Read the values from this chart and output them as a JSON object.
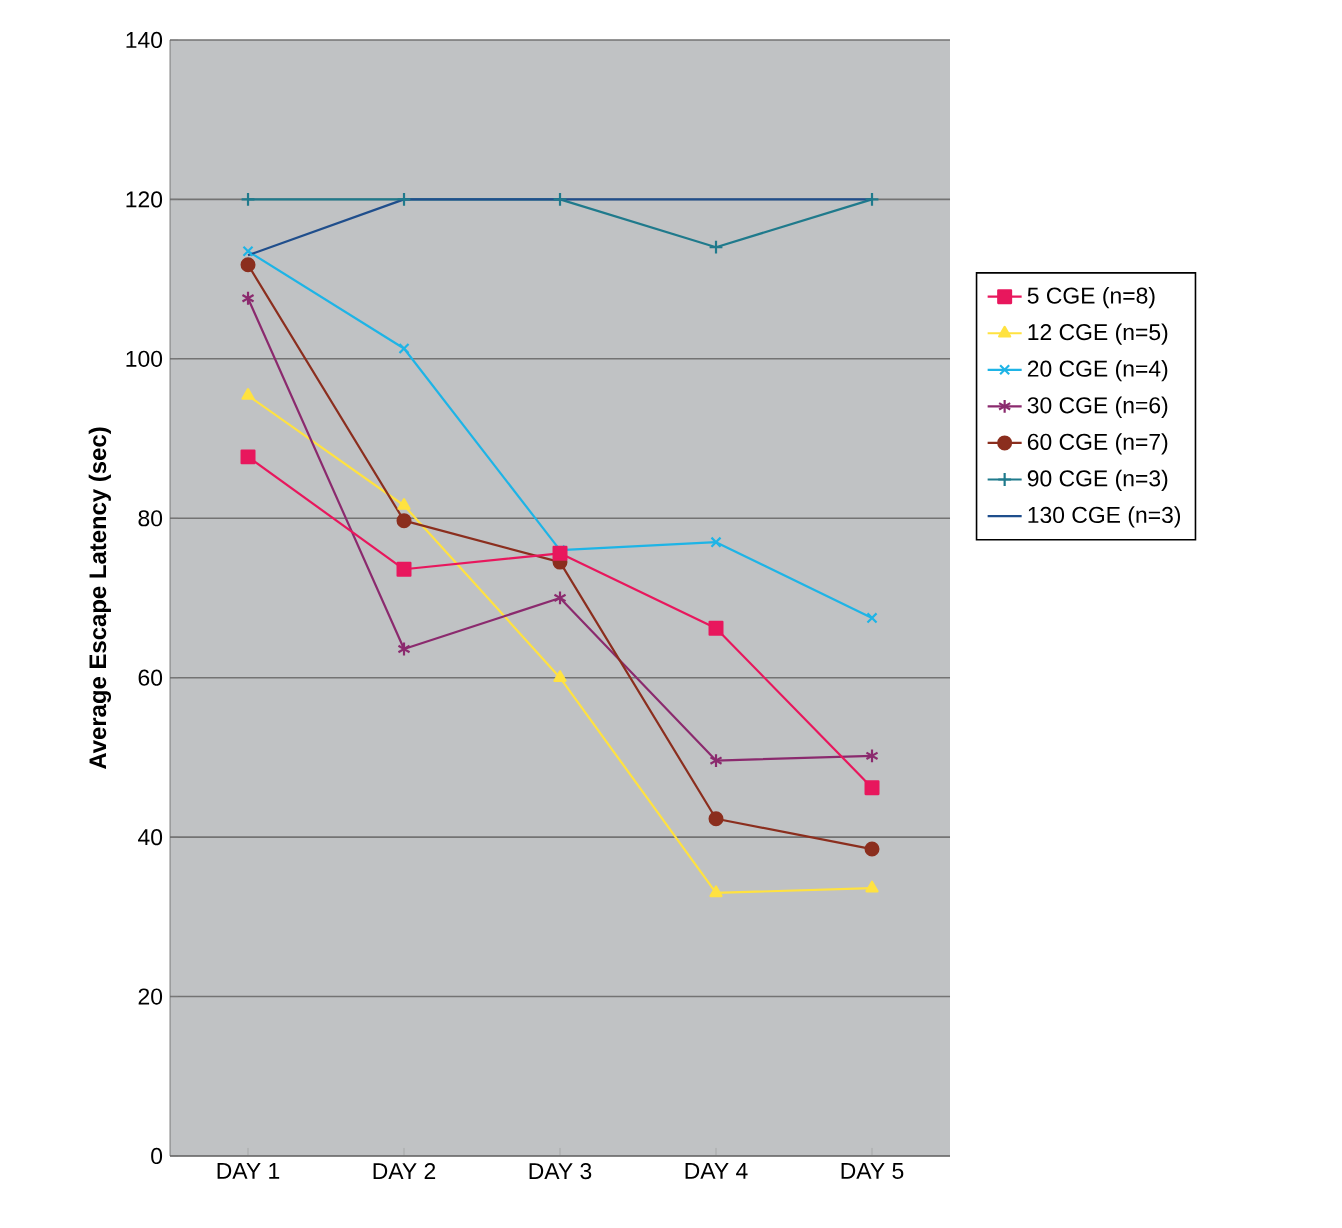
{
  "chart_data": {
    "type": "line",
    "ylabel": "Average Escape Latency (sec)",
    "categories": [
      "DAY 1",
      "DAY 2",
      "DAY 3",
      "DAY 4",
      "DAY 5"
    ],
    "ylim": [
      0,
      140
    ],
    "yticks": [
      0,
      20,
      40,
      60,
      80,
      100,
      120,
      140
    ],
    "grid": "y",
    "legend": "right",
    "series": [
      {
        "name": "5 CGE (n=8)",
        "color": "#e8175d",
        "marker": "square",
        "values": [
          87.7,
          73.6,
          75.6,
          66.2,
          46.2
        ]
      },
      {
        "name": "12 CGE (n=5)",
        "color": "#ffe240",
        "marker": "triangle",
        "values": [
          95.4,
          81.6,
          60.0,
          33.0,
          33.6
        ]
      },
      {
        "name": "20 CGE (n=4)",
        "color": "#1eb4e6",
        "marker": "cross",
        "values": [
          113.5,
          101.3,
          76.0,
          77.0,
          67.5
        ]
      },
      {
        "name": "30 CGE (n=6)",
        "color": "#8b2a6e",
        "marker": "cross",
        "values": [
          107.6,
          63.6,
          70.0,
          49.6,
          50.2
        ]
      },
      {
        "name": "60 CGE (n=7)",
        "color": "#8b2e1e",
        "marker": "circle",
        "values": [
          111.8,
          79.7,
          74.5,
          42.3,
          38.5
        ]
      },
      {
        "name": "90 CGE (n=3)",
        "color": "#1f7a8c",
        "marker": "cross",
        "values": [
          120,
          120,
          120,
          114,
          120
        ]
      },
      {
        "name": "130 CGE (n=3)",
        "color": "#1f4e8c",
        "marker": "none",
        "values": [
          113,
          120,
          120,
          120,
          120
        ]
      }
    ]
  }
}
